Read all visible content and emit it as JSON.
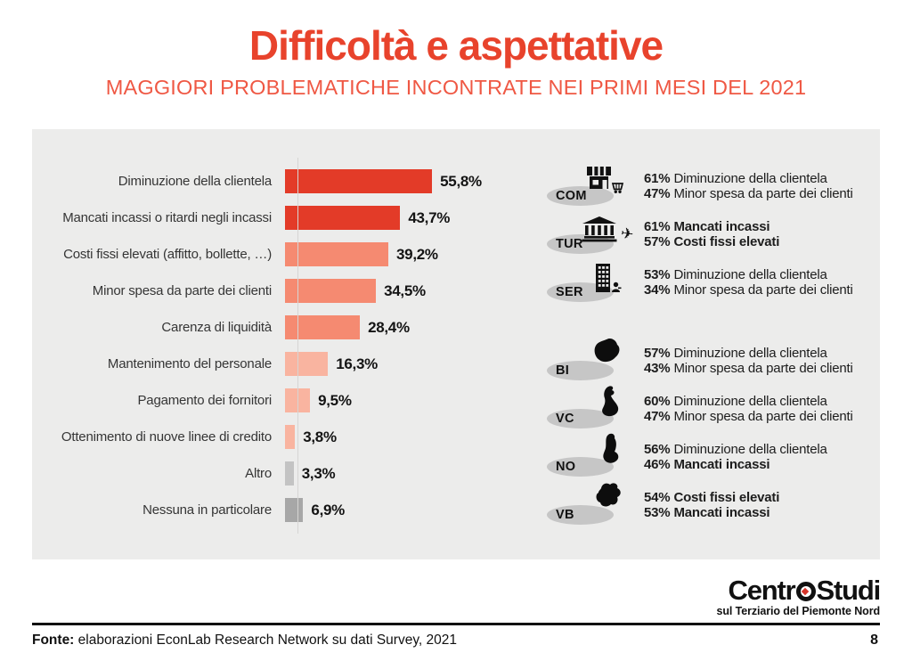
{
  "header": {
    "title": "Difficoltà e aspettative",
    "subtitle": "MAGGIORI PROBLEMATICHE INCONTRATE NEI PRIMI MESI DEL 2021"
  },
  "chart_data": {
    "type": "bar",
    "orientation": "horizontal",
    "unit": "%",
    "xlim": [
      0,
      60
    ],
    "grid": false,
    "legend": null,
    "title": "",
    "xlabel": "",
    "ylabel": "",
    "categories": [
      "Diminuzione della clientela",
      "Mancati incassi o ritardi negli incassi",
      "Costi fissi elevati (affitto, bollette, …)",
      "Minor spesa da parte dei clienti",
      "Carenza di liquidità",
      "Mantenimento del personale",
      "Pagamento dei fornitori",
      "Ottenimento di nuove linee di credito",
      "Altro",
      "Nessuna in particolare"
    ],
    "values": [
      55.8,
      43.7,
      39.2,
      34.5,
      28.4,
      16.3,
      9.5,
      3.8,
      3.3,
      6.9
    ],
    "value_labels": [
      "55,8%",
      "43,7%",
      "39,2%",
      "34,5%",
      "28,4%",
      "16,3%",
      "9,5%",
      "3,8%",
      "3,3%",
      "6,9%"
    ],
    "bar_colors": [
      "#e33b28",
      "#e33b28",
      "#f58a71",
      "#f58a71",
      "#f58a71",
      "#f9b4a0",
      "#f9b4a0",
      "#f9b4a0",
      "#c3c3c3",
      "#a7a7a7"
    ]
  },
  "sector_groups": [
    {
      "code": "COM",
      "icon": "storefront-cart-icon",
      "lines": [
        {
          "pct": "61%",
          "text": "Diminuzione della clientela",
          "bold": false
        },
        {
          "pct": "47%",
          "text": "Minor spesa da parte dei clienti",
          "bold": false
        }
      ]
    },
    {
      "code": "TUR",
      "icon": "bank-airplane-icon",
      "lines": [
        {
          "pct": "61%",
          "text": "Mancati incassi",
          "bold": true
        },
        {
          "pct": "57%",
          "text": "Costi fissi elevati",
          "bold": true
        }
      ]
    },
    {
      "code": "SER",
      "icon": "office-person-icon",
      "lines": [
        {
          "pct": "53%",
          "text": "Diminuzione della clientela",
          "bold": false
        },
        {
          "pct": "34%",
          "text": "Minor spesa da parte dei clienti",
          "bold": false
        }
      ]
    }
  ],
  "province_groups": [
    {
      "code": "BI",
      "icon": "province-map-bi-icon",
      "lines": [
        {
          "pct": "57%",
          "text": "Diminuzione della clientela",
          "bold": false
        },
        {
          "pct": "43%",
          "text": "Minor spesa da parte dei clienti",
          "bold": false
        }
      ]
    },
    {
      "code": "VC",
      "icon": "province-map-vc-icon",
      "lines": [
        {
          "pct": "60%",
          "text": "Diminuzione della clientela",
          "bold": false
        },
        {
          "pct": "47%",
          "text": "Minor spesa da parte dei clienti",
          "bold": false
        }
      ]
    },
    {
      "code": "NO",
      "icon": "province-map-no-icon",
      "lines": [
        {
          "pct": "56%",
          "text": "Diminuzione della clientela",
          "bold": false
        },
        {
          "pct": "46%",
          "text": "Mancati incassi",
          "bold": true
        }
      ]
    },
    {
      "code": "VB",
      "icon": "province-map-vb-icon",
      "lines": [
        {
          "pct": "54%",
          "text": "Costi fissi elevati",
          "bold": true
        },
        {
          "pct": "53%",
          "text": "Mancati incassi",
          "bold": true
        }
      ]
    }
  ],
  "footer": {
    "logo_pre": "Centr",
    "logo_post": "Studi",
    "logo_tagline": "sul Terziario del Piemonte Nord",
    "source_label": "Fonte:",
    "source_text": " elaborazioni EconLab Research Network su dati Survey, 2021",
    "page_number": "8"
  },
  "colors": {
    "title_red": "#e8432c",
    "subtitle_red": "#ef5844",
    "bar_dark_red": "#e33b28",
    "bar_salmon": "#f58a71",
    "bar_light_pink": "#f9b4a0",
    "bar_gray_light": "#c3c3c3",
    "bar_gray_dark": "#a7a7a7",
    "panel_background": "#ececeb",
    "badge_ellipse": "#c6c6c6",
    "logo_diamond_red": "#d6342a"
  }
}
